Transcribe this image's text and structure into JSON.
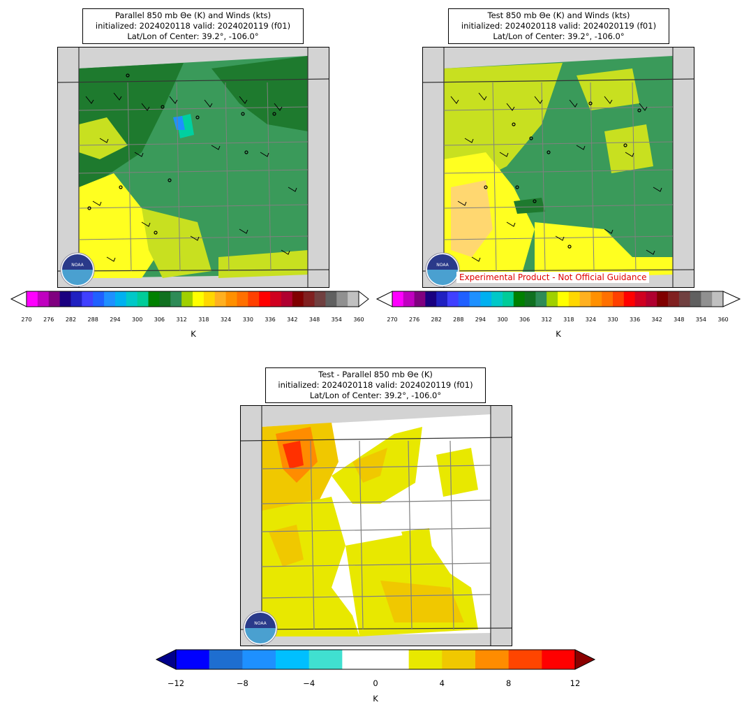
{
  "panels": [
    {
      "title_lines": [
        "Parallel 850 mb Θe (K) and Winds (kts)",
        "initialized: 2024020118 valid: 2024020119 (f01)",
        "Lat/Lon of Center: 39.2°, -106.0°"
      ],
      "colorbar": {
        "ticks": [
          "270",
          "276",
          "282",
          "288",
          "294",
          "300",
          "306",
          "312",
          "318",
          "324",
          "330",
          "336",
          "342",
          "348",
          "354",
          "360"
        ],
        "label": "K"
      }
    },
    {
      "title_lines": [
        "Test 850 mb Θe (K) and Winds (kts)",
        "initialized: 2024020118 valid: 2024020119 (f01)",
        "Lat/Lon of Center: 39.2°, -106.0°"
      ],
      "disclaimer": "Experimental Product - Not Official Guidance",
      "colorbar": {
        "ticks": [
          "270",
          "276",
          "282",
          "288",
          "294",
          "300",
          "306",
          "312",
          "318",
          "324",
          "330",
          "336",
          "342",
          "348",
          "354",
          "360"
        ],
        "label": "K"
      }
    },
    {
      "title_lines": [
        "Test - Parallel 850 mb Θe (K)",
        "initialized: 2024020118 valid: 2024020119 (f01)",
        "Lat/Lon of Center: 39.2°, -106.0°"
      ],
      "colorbar": {
        "ticks": [
          "−12",
          "−8",
          "−4",
          "0",
          "4",
          "8",
          "12"
        ],
        "label": "K"
      }
    }
  ],
  "logo_text": "NOAA",
  "colors": {
    "thetae_scale": [
      "#ff00ff",
      "#c000c0",
      "#800080",
      "#1a0080",
      "#2020c0",
      "#4040ff",
      "#2060ff",
      "#1e90ff",
      "#00b0f0",
      "#00c8c8",
      "#00cc99",
      "#008000",
      "#107020",
      "#2e8b57",
      "#a0d000",
      "#ffff00",
      "#ffd700",
      "#ffb020",
      "#ff9000",
      "#ff7000",
      "#ff4000",
      "#ff0000",
      "#d00020",
      "#b00030",
      "#800000",
      "#802020",
      "#704040",
      "#606060",
      "#909090",
      "#c0c0c0"
    ],
    "diff_scale": [
      "#0000cd",
      "#0000ff",
      "#1e6ed0",
      "#1e90ff",
      "#00bfff",
      "#40e0d0",
      "#ffffff",
      "#ffffff",
      "#e8e800",
      "#f0c800",
      "#ff8c00",
      "#ff4500",
      "#ff0000"
    ]
  }
}
